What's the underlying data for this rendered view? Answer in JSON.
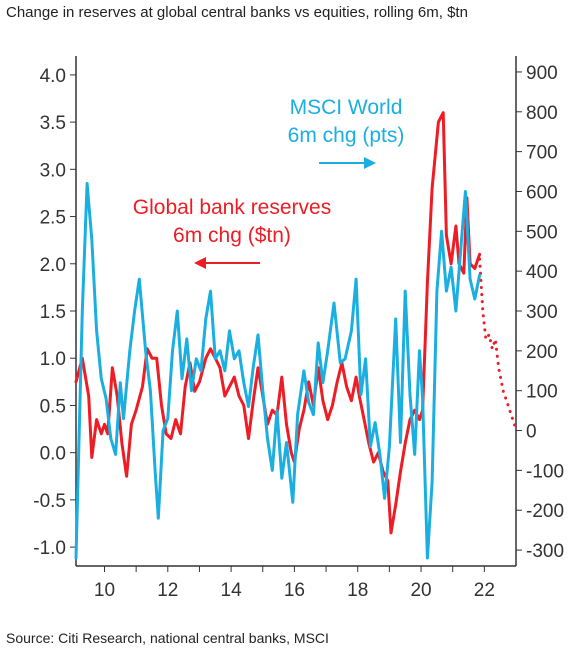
{
  "title": "Change in reserves at global central banks vs equities, rolling 6m, $tn",
  "source": "Source: Citi Research, national central banks, MSCI",
  "colors": {
    "msci": "#1aafe0",
    "reserves": "#ee1c25",
    "axis": "#333333"
  },
  "chart_data": {
    "type": "line",
    "x_ticks": [
      "10",
      "12",
      "14",
      "16",
      "18",
      "20",
      "22"
    ],
    "x_range": [
      2009.1,
      2023.0
    ],
    "y_left": {
      "range": [
        -1.2,
        4.2
      ],
      "ticks": [
        "4.0",
        "3.5",
        "3.0",
        "2.5",
        "2.0",
        "1.5",
        "1.0",
        "0.5",
        "0.0",
        "-0.5",
        "-1.0"
      ],
      "tick_values": [
        4.0,
        3.5,
        3.0,
        2.5,
        2.0,
        1.5,
        1.0,
        0.5,
        0.0,
        -0.5,
        -1.0
      ]
    },
    "y_right": {
      "range": [
        -340,
        940
      ],
      "ticks": [
        "900",
        "800",
        "700",
        "600",
        "500",
        "400",
        "300",
        "200",
        "100",
        "0",
        "-100",
        "-200",
        "-300"
      ],
      "tick_values": [
        900,
        800,
        700,
        600,
        500,
        400,
        300,
        200,
        100,
        0,
        -100,
        -200,
        -300
      ]
    },
    "annotations": {
      "msci_line1": "MSCI World",
      "msci_line2": "6m chg (pts)",
      "reserves_line1": "Global bank reserves",
      "reserves_line2": "6m chg ($tn)"
    },
    "series": [
      {
        "name": "Global bank reserves 6m chg ($tn)",
        "axis": "left",
        "color": "#ee1c25",
        "points": [
          [
            2009.1,
            0.75
          ],
          [
            2009.3,
            1.0
          ],
          [
            2009.5,
            0.6
          ],
          [
            2009.6,
            -0.05
          ],
          [
            2009.75,
            0.35
          ],
          [
            2009.9,
            0.2
          ],
          [
            2010.0,
            0.3
          ],
          [
            2010.1,
            0.2
          ],
          [
            2010.25,
            0.9
          ],
          [
            2010.4,
            0.6
          ],
          [
            2010.55,
            0.1
          ],
          [
            2010.7,
            -0.25
          ],
          [
            2010.85,
            0.3
          ],
          [
            2011.0,
            0.45
          ],
          [
            2011.2,
            0.7
          ],
          [
            2011.35,
            1.1
          ],
          [
            2011.5,
            1.0
          ],
          [
            2011.65,
            1.0
          ],
          [
            2011.8,
            0.5
          ],
          [
            2011.95,
            0.2
          ],
          [
            2012.1,
            0.15
          ],
          [
            2012.25,
            0.35
          ],
          [
            2012.4,
            0.2
          ],
          [
            2012.55,
            0.7
          ],
          [
            2012.7,
            0.95
          ],
          [
            2012.85,
            0.65
          ],
          [
            2013.0,
            0.75
          ],
          [
            2013.2,
            1.0
          ],
          [
            2013.35,
            1.1
          ],
          [
            2013.5,
            1.0
          ],
          [
            2013.65,
            0.9
          ],
          [
            2013.8,
            0.6
          ],
          [
            2013.95,
            0.7
          ],
          [
            2014.1,
            0.8
          ],
          [
            2014.25,
            0.6
          ],
          [
            2014.4,
            0.5
          ],
          [
            2014.55,
            0.15
          ],
          [
            2014.7,
            0.55
          ],
          [
            2014.85,
            0.9
          ],
          [
            2015.0,
            0.6
          ],
          [
            2015.15,
            0.3
          ],
          [
            2015.3,
            0.45
          ],
          [
            2015.45,
            0.4
          ],
          [
            2015.6,
            0.8
          ],
          [
            2015.75,
            0.3
          ],
          [
            2015.9,
            0.0
          ],
          [
            2016.0,
            -0.1
          ],
          [
            2016.15,
            0.25
          ],
          [
            2016.3,
            0.45
          ],
          [
            2016.45,
            0.75
          ],
          [
            2016.6,
            0.5
          ],
          [
            2016.75,
            0.9
          ],
          [
            2016.9,
            0.55
          ],
          [
            2017.05,
            0.35
          ],
          [
            2017.2,
            0.5
          ],
          [
            2017.35,
            0.75
          ],
          [
            2017.5,
            0.95
          ],
          [
            2017.65,
            0.7
          ],
          [
            2017.8,
            0.55
          ],
          [
            2017.95,
            0.8
          ],
          [
            2018.05,
            0.6
          ],
          [
            2018.2,
            0.35
          ],
          [
            2018.35,
            0.1
          ],
          [
            2018.5,
            -0.1
          ],
          [
            2018.65,
            0.0
          ],
          [
            2018.8,
            -0.2
          ],
          [
            2018.95,
            -0.3
          ],
          [
            2019.05,
            -0.85
          ],
          [
            2019.2,
            -0.55
          ],
          [
            2019.35,
            -0.2
          ],
          [
            2019.5,
            0.1
          ],
          [
            2019.65,
            0.35
          ],
          [
            2019.8,
            0.45
          ],
          [
            2019.95,
            0.35
          ],
          [
            2020.05,
            0.45
          ],
          [
            2020.2,
            1.8
          ],
          [
            2020.35,
            2.8
          ],
          [
            2020.55,
            3.5
          ],
          [
            2020.7,
            3.6
          ],
          [
            2020.8,
            2.3
          ],
          [
            2020.95,
            2.0
          ],
          [
            2021.1,
            2.4
          ],
          [
            2021.2,
            2.0
          ],
          [
            2021.35,
            1.9
          ],
          [
            2021.45,
            2.7
          ],
          [
            2021.55,
            2.0
          ],
          [
            2021.7,
            1.95
          ],
          [
            2021.85,
            2.1
          ]
        ]
      },
      {
        "name": "Global bank reserves 6m chg ($tn), dotted",
        "axis": "left",
        "color": "#ee1c25",
        "dotted": true,
        "points": [
          [
            2021.85,
            2.05
          ],
          [
            2021.95,
            1.5
          ],
          [
            2022.05,
            1.2
          ],
          [
            2022.15,
            1.25
          ],
          [
            2022.25,
            1.1
          ],
          [
            2022.35,
            1.2
          ],
          [
            2022.45,
            0.9
          ],
          [
            2022.6,
            0.65
          ],
          [
            2022.75,
            0.5
          ],
          [
            2022.9,
            0.35
          ],
          [
            2023.0,
            0.25
          ]
        ]
      },
      {
        "name": "MSCI World 6m chg (pts)",
        "axis": "right",
        "color": "#1aafe0",
        "points": [
          [
            2009.1,
            -320
          ],
          [
            2009.3,
            300
          ],
          [
            2009.45,
            620
          ],
          [
            2009.6,
            480
          ],
          [
            2009.75,
            250
          ],
          [
            2009.9,
            130
          ],
          [
            2010.05,
            80
          ],
          [
            2010.2,
            -20
          ],
          [
            2010.35,
            -60
          ],
          [
            2010.5,
            120
          ],
          [
            2010.6,
            30
          ],
          [
            2010.8,
            200
          ],
          [
            2010.95,
            300
          ],
          [
            2011.1,
            380
          ],
          [
            2011.3,
            200
          ],
          [
            2011.45,
            100
          ],
          [
            2011.6,
            -100
          ],
          [
            2011.7,
            -220
          ],
          [
            2011.85,
            0
          ],
          [
            2012.0,
            30
          ],
          [
            2012.15,
            200
          ],
          [
            2012.3,
            300
          ],
          [
            2012.45,
            130
          ],
          [
            2012.6,
            230
          ],
          [
            2012.75,
            100
          ],
          [
            2012.9,
            180
          ],
          [
            2013.05,
            150
          ],
          [
            2013.2,
            280
          ],
          [
            2013.35,
            350
          ],
          [
            2013.5,
            180
          ],
          [
            2013.65,
            200
          ],
          [
            2013.8,
            150
          ],
          [
            2013.95,
            250
          ],
          [
            2014.1,
            180
          ],
          [
            2014.25,
            200
          ],
          [
            2014.4,
            120
          ],
          [
            2014.55,
            60
          ],
          [
            2014.7,
            160
          ],
          [
            2014.85,
            240
          ],
          [
            2015.0,
            100
          ],
          [
            2015.15,
            -20
          ],
          [
            2015.3,
            -100
          ],
          [
            2015.45,
            50
          ],
          [
            2015.6,
            -120
          ],
          [
            2015.75,
            -30
          ],
          [
            2015.95,
            -180
          ],
          [
            2016.1,
            40
          ],
          [
            2016.3,
            150
          ],
          [
            2016.45,
            70
          ],
          [
            2016.6,
            40
          ],
          [
            2016.75,
            220
          ],
          [
            2016.9,
            120
          ],
          [
            2017.05,
            200
          ],
          [
            2017.25,
            320
          ],
          [
            2017.45,
            170
          ],
          [
            2017.6,
            180
          ],
          [
            2017.8,
            250
          ],
          [
            2017.95,
            380
          ],
          [
            2018.1,
            90
          ],
          [
            2018.25,
            180
          ],
          [
            2018.4,
            -40
          ],
          [
            2018.55,
            20
          ],
          [
            2018.7,
            -60
          ],
          [
            2018.85,
            -170
          ],
          [
            2019.0,
            -40
          ],
          [
            2019.2,
            280
          ],
          [
            2019.35,
            -30
          ],
          [
            2019.5,
            350
          ],
          [
            2019.65,
            90
          ],
          [
            2019.8,
            -60
          ],
          [
            2019.95,
            200
          ],
          [
            2020.05,
            80
          ],
          [
            2020.2,
            -320
          ],
          [
            2020.35,
            -130
          ],
          [
            2020.5,
            350
          ],
          [
            2020.65,
            500
          ],
          [
            2020.8,
            350
          ],
          [
            2020.95,
            410
          ],
          [
            2021.1,
            300
          ],
          [
            2021.25,
            450
          ],
          [
            2021.4,
            600
          ],
          [
            2021.55,
            380
          ],
          [
            2021.7,
            330
          ],
          [
            2021.85,
            390
          ]
        ]
      }
    ]
  }
}
